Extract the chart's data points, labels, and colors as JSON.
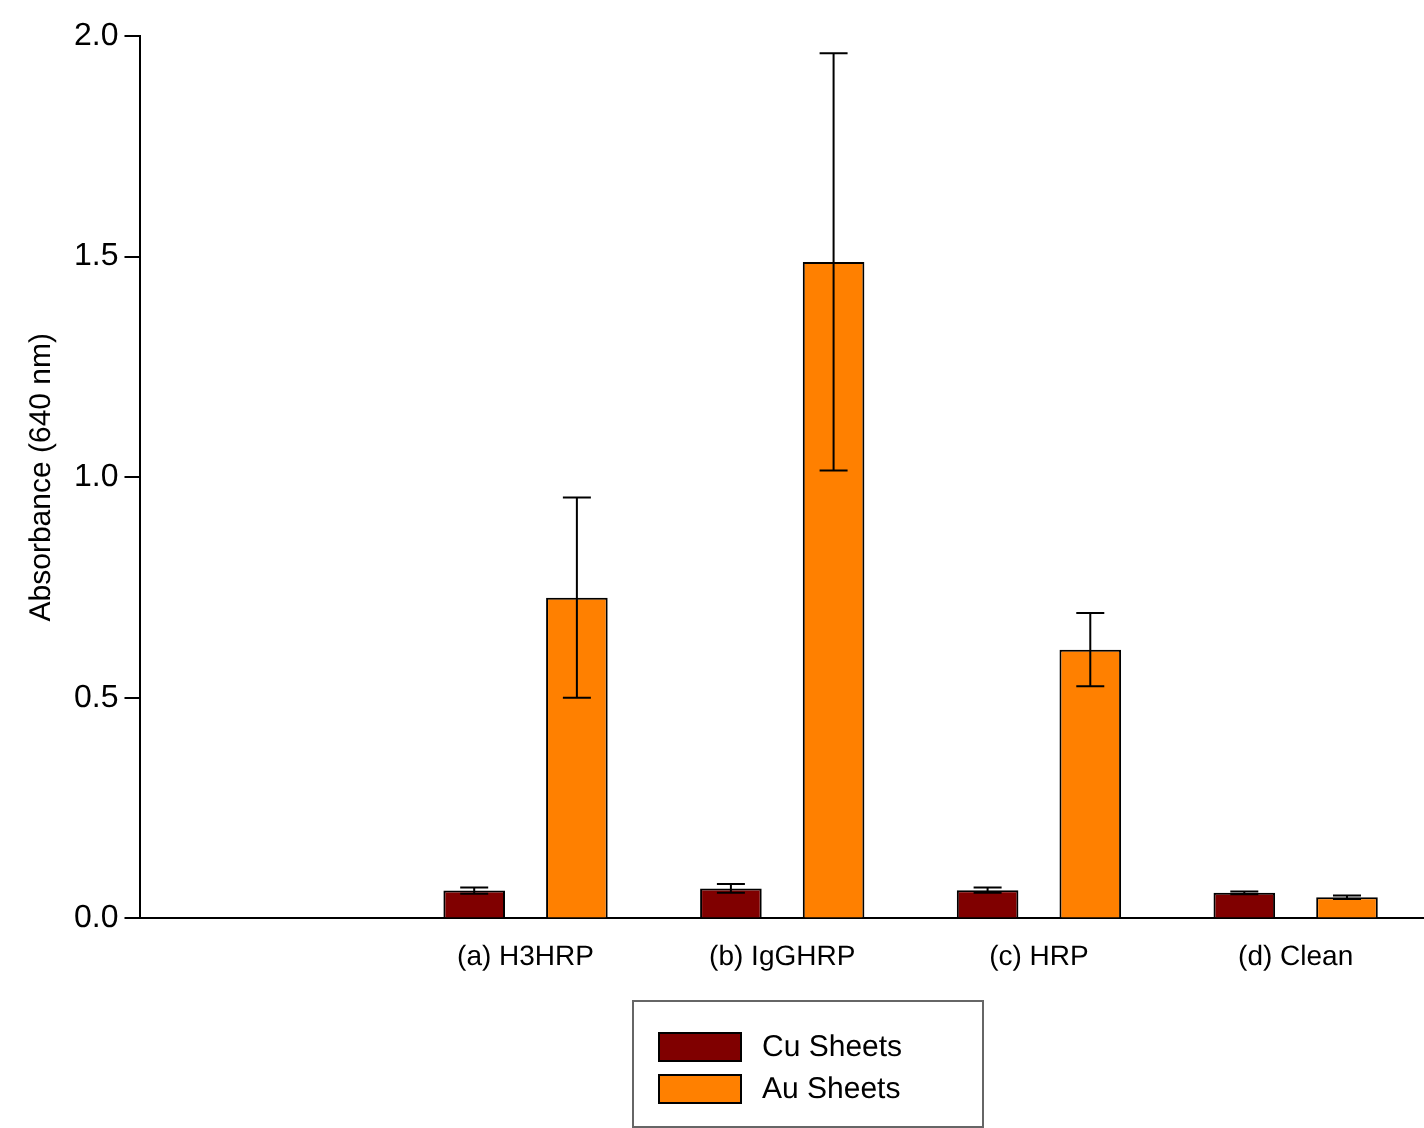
{
  "chart_data": {
    "type": "bar",
    "ylabel": "Absorbance (640 nm)",
    "categories": [
      null,
      "(a) H3HRP",
      "(b) IgGHRP",
      "(c) HRP",
      "(d) Clean"
    ],
    "series": [
      {
        "name": "Cu Sheets",
        "color": "#800000",
        "values": [
          null,
          0.063,
          0.068,
          0.064,
          0.058
        ],
        "errors": [
          null,
          0.007,
          0.01,
          0.006,
          0.003
        ]
      },
      {
        "name": "Au Sheets",
        "color": "#ff8000",
        "values": [
          null,
          0.727,
          1.488,
          0.609,
          0.048
        ],
        "errors": [
          null,
          0.227,
          0.473,
          0.083,
          0.004
        ]
      }
    ],
    "ylim": [
      0,
      2
    ],
    "yticks": [
      {
        "value": 0,
        "label": "0.0"
      },
      {
        "value": 0.5,
        "label": "0.5"
      },
      {
        "value": 1,
        "label": "1.0"
      },
      {
        "value": 1.5,
        "label": "1.5"
      },
      {
        "value": 2,
        "label": "2.0"
      }
    ],
    "grid": false,
    "legend": "bottom"
  }
}
